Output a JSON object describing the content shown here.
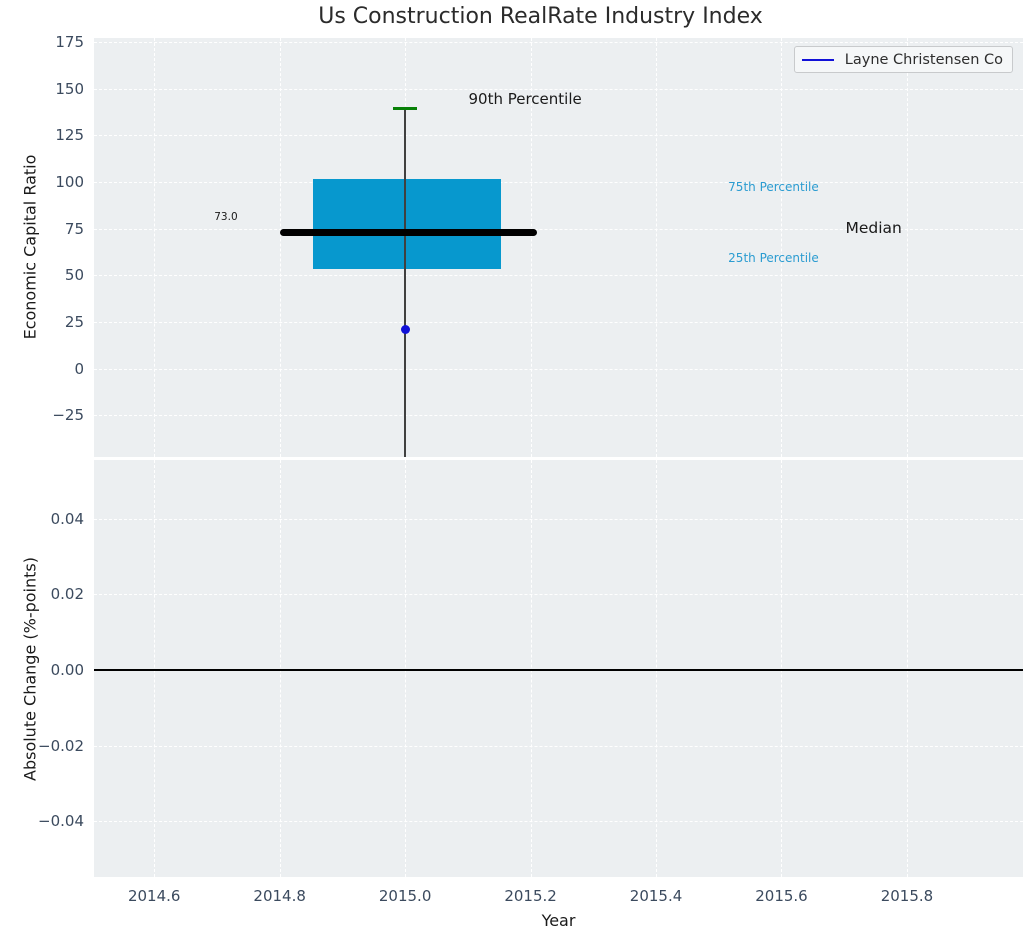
{
  "title": "Us Construction RealRate Industry Index",
  "legend": {
    "label": "Layne Christensen Co"
  },
  "colors": {
    "figure_bg": "#ffffff",
    "axes_bg": "#eceff1",
    "grid": "#ffffff",
    "tick_label": "#3b4a5e",
    "title": "#2b2b2b",
    "axis_label": "#1a1a1a",
    "box_fill": "#0798ce",
    "percentile_label": "#2b9cd1",
    "median_line": "#000000",
    "whisker": "#404040",
    "whisker_cap": "#078007",
    "point": "#1111d8",
    "zero_line": "#000000",
    "legend_border": "#c8cacc",
    "legend_bg": "#f5f7f8"
  },
  "chart_data": [
    {
      "type": "boxplot",
      "title": "Us Construction RealRate Industry Index",
      "ylabel": "Economic Capital Ratio",
      "xlim": [
        2014.504,
        2015.985
      ],
      "ylim": [
        -47.3,
        177.1
      ],
      "grid": "white-dashed",
      "show_x_tick_labels": false,
      "x_ticks": [
        {
          "v": 2014.6,
          "label": "2014.6"
        },
        {
          "v": 2014.8,
          "label": "2014.8"
        },
        {
          "v": 2015.0,
          "label": "2015.0"
        },
        {
          "v": 2015.2,
          "label": "2015.2"
        },
        {
          "v": 2015.4,
          "label": "2015.4"
        },
        {
          "v": 2015.6,
          "label": "2015.6"
        },
        {
          "v": 2015.8,
          "label": "2015.8"
        }
      ],
      "y_ticks": [
        {
          "v": 175,
          "label": "175"
        },
        {
          "v": 150,
          "label": "150"
        },
        {
          "v": 125,
          "label": "125"
        },
        {
          "v": 100,
          "label": "100"
        },
        {
          "v": 75,
          "label": "75"
        },
        {
          "v": 50,
          "label": "50"
        },
        {
          "v": 25,
          "label": "25"
        },
        {
          "v": 0,
          "label": "0"
        },
        {
          "v": -25,
          "label": "−25"
        }
      ],
      "box": {
        "x_center": 2015.0,
        "x_left": 2014.853,
        "x_right": 2015.153,
        "q1": 53.5,
        "median": 73.0,
        "q3": 101.5,
        "p90": 139.5,
        "whisker_extends_to_bottom": true,
        "median_line_x": [
          2014.8,
          2015.21
        ],
        "cap_half_width": 0.019
      },
      "series_point": {
        "name": "Layne Christensen Co",
        "x": 2015.0,
        "y": 21
      },
      "annotations": [
        {
          "text": "90th Percentile",
          "x": 2015.101,
          "y": 144.5,
          "size": 15,
          "color_key": "axis_label",
          "align": "left"
        },
        {
          "text": "73.0",
          "x": 2014.733,
          "y": 81.5,
          "size": 10.5,
          "color_key": "axis_label",
          "align": "right"
        },
        {
          "text": "75th Percentile",
          "x": 2015.515,
          "y": 97.5,
          "size": 12,
          "color_key": "percentile_label",
          "align": "left"
        },
        {
          "text": "Median",
          "x": 2015.702,
          "y": 75.4,
          "size": 15.5,
          "color_key": "axis_label",
          "align": "left"
        },
        {
          "text": "25th Percentile",
          "x": 2015.515,
          "y": 59.3,
          "size": 12,
          "color_key": "percentile_label",
          "align": "left"
        }
      ],
      "legend": {
        "label": "Layne Christensen Co",
        "position": "upper right"
      }
    },
    {
      "type": "line",
      "ylabel": "Absolute Change (%-points)",
      "xlabel": "Year",
      "xlim": [
        2014.504,
        2015.985
      ],
      "ylim": [
        -0.0547,
        0.0555
      ],
      "grid": "white-dashed",
      "show_x_tick_labels": true,
      "x_ticks": [
        {
          "v": 2014.6,
          "label": "2014.6"
        },
        {
          "v": 2014.8,
          "label": "2014.8"
        },
        {
          "v": 2015.0,
          "label": "2015.0"
        },
        {
          "v": 2015.2,
          "label": "2015.2"
        },
        {
          "v": 2015.4,
          "label": "2015.4"
        },
        {
          "v": 2015.6,
          "label": "2015.6"
        },
        {
          "v": 2015.8,
          "label": "2015.8"
        }
      ],
      "y_ticks": [
        {
          "v": 0.04,
          "label": "0.04"
        },
        {
          "v": 0.02,
          "label": "0.02"
        },
        {
          "v": 0,
          "label": "0.00"
        },
        {
          "v": -0.02,
          "label": "−0.02"
        },
        {
          "v": -0.04,
          "label": "−0.04"
        }
      ],
      "zero_line": 0,
      "series": []
    }
  ]
}
